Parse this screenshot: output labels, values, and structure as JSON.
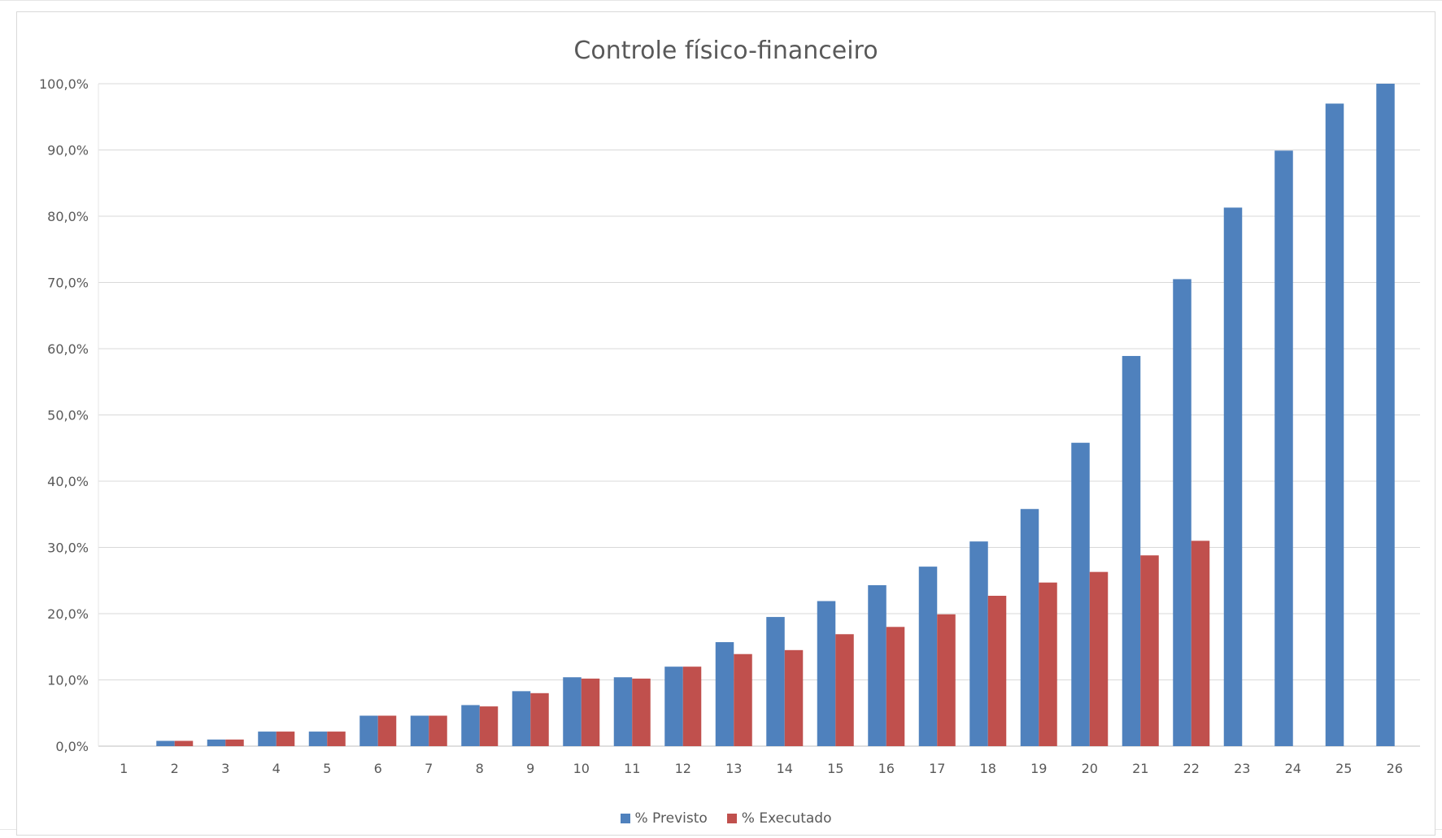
{
  "chart_data": {
    "type": "bar",
    "title": "Controle físico-financeiro",
    "xlabel": "",
    "ylabel": "",
    "ylim": [
      0,
      100
    ],
    "y_ticks": [
      "0,0%",
      "10,0%",
      "20,0%",
      "30,0%",
      "40,0%",
      "50,0%",
      "60,0%",
      "70,0%",
      "80,0%",
      "90,0%",
      "100,0%"
    ],
    "y_tick_values": [
      0,
      10,
      20,
      30,
      40,
      50,
      60,
      70,
      80,
      90,
      100
    ],
    "categories": [
      "1",
      "2",
      "3",
      "4",
      "5",
      "6",
      "7",
      "8",
      "9",
      "10",
      "11",
      "12",
      "13",
      "14",
      "15",
      "16",
      "17",
      "18",
      "19",
      "20",
      "21",
      "22",
      "23",
      "24",
      "25",
      "26"
    ],
    "grid": true,
    "legend_position": "bottom",
    "series": [
      {
        "name": "% Previsto",
        "color": "#4f81bd",
        "values": [
          0,
          0.8,
          1.0,
          2.2,
          2.2,
          4.6,
          4.6,
          6.2,
          8.3,
          10.4,
          10.4,
          12.0,
          15.7,
          19.5,
          21.9,
          24.3,
          27.1,
          30.9,
          35.8,
          45.8,
          58.9,
          70.5,
          81.3,
          89.9,
          97.0,
          100.0
        ]
      },
      {
        "name": "% Executado",
        "color": "#c0504d",
        "values": [
          0,
          0.8,
          1.0,
          2.2,
          2.2,
          4.6,
          4.6,
          6.0,
          8.0,
          10.2,
          10.2,
          12.0,
          13.9,
          14.5,
          16.9,
          18.0,
          19.9,
          22.7,
          24.7,
          26.3,
          28.8,
          31.0,
          null,
          null,
          null,
          null
        ]
      }
    ]
  }
}
